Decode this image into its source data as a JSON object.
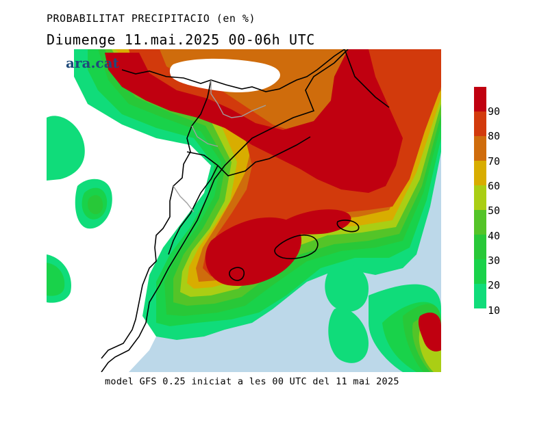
{
  "title": "PROBABILITAT PRECIPITACIO (en %)",
  "subtitle": "Diumenge  11.mai.2025 00-06h UTC",
  "logo": "ara.cat",
  "footer": "model GFS 0.25 iniciat a les 00 UTC del 11 mai 2025",
  "legend": {
    "labels": [
      "90",
      "80",
      "70",
      "60",
      "50",
      "40",
      "30",
      "20",
      "10"
    ],
    "colors": [
      "#c00010",
      "#d23a0c",
      "#cf6c0c",
      "#d8ad00",
      "#aace14",
      "#54c428",
      "#28c838",
      "#19d24a",
      "#10dc7a"
    ]
  },
  "colors": {
    "sea": "#bcd8e9",
    "land": "#ffffff",
    "border": "#000000",
    "region_border": "#a0a0a0"
  }
}
